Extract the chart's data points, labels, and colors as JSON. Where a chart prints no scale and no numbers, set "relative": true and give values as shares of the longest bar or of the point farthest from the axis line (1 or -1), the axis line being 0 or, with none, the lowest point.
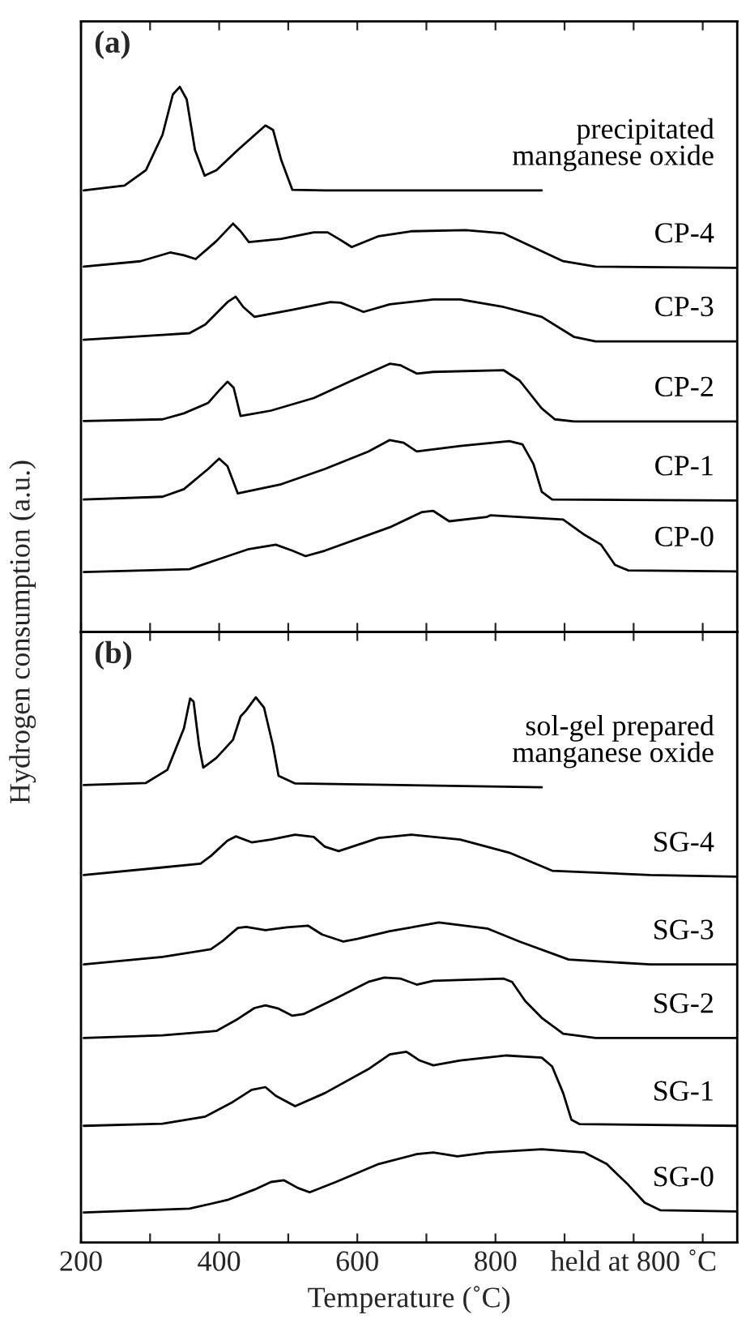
{
  "chart_data": [
    {
      "type": "line",
      "title": "(a)",
      "ylabel": "Hydrogen consumption (a.u.)",
      "relative": true,
      "xlim": [
        200,
        1150
      ],
      "xticks": [
        {
          "value": 200,
          "label": null
        },
        {
          "value": 300,
          "label": null
        },
        {
          "value": 400,
          "label": null
        },
        {
          "value": 500,
          "label": null
        },
        {
          "value": 600,
          "label": null
        },
        {
          "value": 700,
          "label": null
        },
        {
          "value": 800,
          "label": null
        },
        {
          "value": 900,
          "label": null
        },
        {
          "value": 1000,
          "label": null
        },
        {
          "value": 1100,
          "label": null
        }
      ],
      "tick_labels": false,
      "grid": false,
      "legend": false,
      "series": [
        {
          "name": "precipitated\nmanganese oxide",
          "color": "#000000",
          "x": [
            204,
            263,
            294,
            318,
            333,
            343,
            353,
            365,
            379,
            396,
            427,
            467,
            478,
            490,
            506,
            553,
            867
          ],
          "values": [
            0.81,
            0.819,
            0.847,
            0.912,
            0.986,
            1.0,
            0.977,
            0.884,
            0.837,
            0.847,
            0.884,
            0.929,
            0.921,
            0.865,
            0.811,
            0.81,
            0.81
          ]
        },
        {
          "name": "CP-4",
          "color": "#000000",
          "x": [
            204,
            286,
            329,
            349,
            366,
            396,
            420,
            431,
            443,
            490,
            537,
            557,
            573,
            592,
            631,
            678,
            757,
            812,
            851,
            898,
            945,
            1150
          ],
          "values": [
            0.67,
            0.68,
            0.696,
            0.691,
            0.684,
            0.717,
            0.749,
            0.735,
            0.715,
            0.721,
            0.733,
            0.733,
            0.721,
            0.706,
            0.726,
            0.735,
            0.737,
            0.731,
            0.708,
            0.68,
            0.67,
            0.668
          ]
        },
        {
          "name": "CP-3",
          "color": "#000000",
          "x": [
            204,
            318,
            357,
            380,
            412,
            424,
            435,
            451,
            506,
            561,
            576,
            592,
            609,
            647,
            710,
            749,
            812,
            867,
            914,
            945,
            1150
          ],
          "values": [
            0.536,
            0.545,
            0.548,
            0.564,
            0.605,
            0.615,
            0.596,
            0.578,
            0.591,
            0.605,
            0.604,
            0.596,
            0.587,
            0.601,
            0.61,
            0.61,
            0.596,
            0.578,
            0.541,
            0.533,
            0.533
          ]
        },
        {
          "name": "CP-2",
          "color": "#000000",
          "x": [
            204,
            318,
            349,
            384,
            400,
            412,
            421,
            431,
            475,
            537,
            592,
            647,
            663,
            686,
            710,
            812,
            835,
            867,
            886,
            914,
            1150
          ],
          "values": [
            0.387,
            0.39,
            0.401,
            0.42,
            0.443,
            0.459,
            0.448,
            0.396,
            0.406,
            0.429,
            0.461,
            0.492,
            0.489,
            0.474,
            0.477,
            0.48,
            0.461,
            0.41,
            0.39,
            0.386,
            0.386
          ]
        },
        {
          "name": "CP-1",
          "color": "#000000",
          "x": [
            204,
            318,
            349,
            384,
            400,
            412,
            427,
            490,
            553,
            616,
            647,
            667,
            686,
            749,
            820,
            839,
            855,
            867,
            882,
            1150
          ],
          "values": [
            0.243,
            0.248,
            0.262,
            0.299,
            0.318,
            0.304,
            0.254,
            0.271,
            0.299,
            0.331,
            0.352,
            0.347,
            0.331,
            0.341,
            0.35,
            0.344,
            0.308,
            0.257,
            0.243,
            0.241
          ]
        },
        {
          "name": "CP-0",
          "color": "#000000",
          "x": [
            204,
            357,
            396,
            443,
            482,
            506,
            525,
            553,
            647,
            694,
            710,
            733,
            788,
            793,
            898,
            929,
            953,
            973,
            992,
            1150
          ],
          "values": [
            0.11,
            0.115,
            0.132,
            0.152,
            0.16,
            0.149,
            0.139,
            0.149,
            0.192,
            0.22,
            0.222,
            0.203,
            0.211,
            0.214,
            0.206,
            0.178,
            0.16,
            0.123,
            0.113,
            0.111
          ]
        }
      ]
    },
    {
      "type": "line",
      "title": "(b)",
      "xlabel": "Temperature (˚C)",
      "relative": true,
      "xlim": [
        200,
        1150
      ],
      "xticks": [
        200,
        {
          "value": 300,
          "label": null
        },
        400,
        {
          "value": 500,
          "label": null
        },
        600,
        {
          "value": 700,
          "label": null
        },
        800,
        {
          "value": 900,
          "label": null
        },
        {
          "value": 1000,
          "label": "held at 800 ˚C"
        },
        {
          "value": 1100,
          "label": null
        }
      ],
      "tick_labels": "x",
      "grid": false,
      "legend": false,
      "series": [
        {
          "name": "sol-gel prepared\nmanganese oxide",
          "color": "#000000",
          "x": [
            204,
            294,
            325,
            349,
            358,
            363,
            371,
            377,
            396,
            420,
            431,
            439,
            453,
            465,
            478,
            486,
            510,
            867
          ],
          "values": [
            0.839,
            0.843,
            0.867,
            0.943,
            0.998,
            0.992,
            0.911,
            0.871,
            0.889,
            0.922,
            0.965,
            0.976,
            1.0,
            0.981,
            0.911,
            0.856,
            0.842,
            0.835
          ]
        },
        {
          "name": "SG-4",
          "color": "#000000",
          "x": [
            204,
            318,
            373,
            388,
            412,
            424,
            447,
            475,
            510,
            537,
            553,
            573,
            631,
            678,
            749,
            820,
            882,
            1024,
            1150
          ],
          "values": [
            0.674,
            0.688,
            0.695,
            0.709,
            0.737,
            0.745,
            0.734,
            0.739,
            0.748,
            0.744,
            0.726,
            0.718,
            0.742,
            0.748,
            0.739,
            0.715,
            0.682,
            0.674,
            0.671
          ]
        },
        {
          "name": "SG-3",
          "color": "#000000",
          "x": [
            204,
            318,
            388,
            404,
            427,
            439,
            467,
            498,
            529,
            549,
            580,
            600,
            647,
            718,
            788,
            835,
            906,
            1024,
            1150
          ],
          "values": [
            0.51,
            0.524,
            0.538,
            0.552,
            0.577,
            0.579,
            0.573,
            0.578,
            0.581,
            0.565,
            0.552,
            0.557,
            0.571,
            0.587,
            0.576,
            0.552,
            0.519,
            0.51,
            0.51
          ]
        },
        {
          "name": "SG-2",
          "color": "#000000",
          "x": [
            204,
            318,
            396,
            427,
            451,
            467,
            486,
            506,
            522,
            569,
            616,
            639,
            663,
            686,
            710,
            812,
            824,
            843,
            867,
            898,
            945,
            1150
          ],
          "values": [
            0.375,
            0.38,
            0.388,
            0.41,
            0.43,
            0.435,
            0.429,
            0.416,
            0.419,
            0.448,
            0.478,
            0.486,
            0.484,
            0.473,
            0.48,
            0.484,
            0.478,
            0.443,
            0.412,
            0.383,
            0.375,
            0.375
          ]
        },
        {
          "name": "SG-1",
          "color": "#000000",
          "x": [
            204,
            318,
            380,
            420,
            447,
            467,
            482,
            510,
            553,
            616,
            647,
            671,
            690,
            710,
            749,
            816,
            867,
            882,
            898,
            910,
            922,
            1150
          ],
          "values": [
            0.214,
            0.218,
            0.231,
            0.258,
            0.28,
            0.285,
            0.269,
            0.25,
            0.274,
            0.318,
            0.345,
            0.35,
            0.334,
            0.325,
            0.334,
            0.343,
            0.339,
            0.323,
            0.274,
            0.225,
            0.217,
            0.214
          ]
        },
        {
          "name": "SG-0",
          "color": "#000000",
          "x": [
            204,
            357,
            412,
            451,
            475,
            494,
            514,
            531,
            569,
            631,
            686,
            710,
            745,
            788,
            867,
            929,
            961,
            992,
            1016,
            1039,
            1150
          ],
          "values": [
            0.055,
            0.062,
            0.078,
            0.097,
            0.111,
            0.114,
            0.1,
            0.092,
            0.111,
            0.144,
            0.162,
            0.165,
            0.158,
            0.165,
            0.171,
            0.165,
            0.144,
            0.106,
            0.073,
            0.059,
            0.057
          ]
        }
      ]
    }
  ]
}
